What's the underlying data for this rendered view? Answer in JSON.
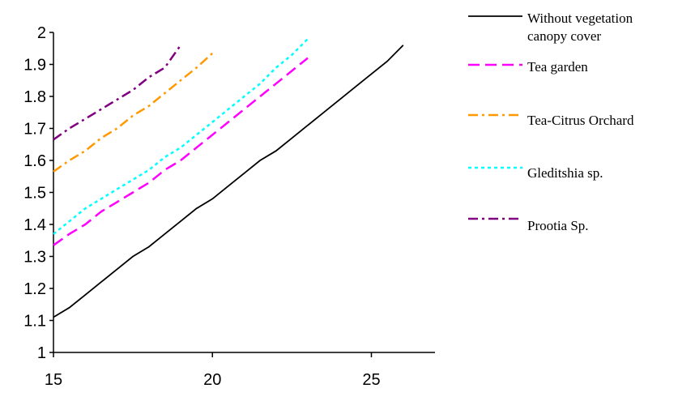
{
  "chart_data": {
    "type": "line",
    "title": "",
    "xlabel": "",
    "ylabel": "",
    "xlim": [
      15,
      27
    ],
    "ylim": [
      1,
      2
    ],
    "xticks": [
      "15",
      "20",
      "25"
    ],
    "yticks": [
      "1",
      "1.1",
      "1.2",
      "1.3",
      "1.4",
      "1.5",
      "1.6",
      "1.7",
      "1.8",
      "1.9",
      "2"
    ],
    "grid": false,
    "legend_position": "right",
    "series": [
      {
        "name": "Without vegetation canopy cover",
        "legend_lines": [
          "Without vegetation",
          "canopy cover"
        ],
        "color": "#000000",
        "dash": "solid",
        "x": [
          15,
          15.5,
          16,
          16.5,
          17,
          17.5,
          18,
          18.5,
          19,
          19.5,
          20,
          20.5,
          21,
          21.5,
          22,
          22.5,
          23,
          23.5,
          24,
          24.5,
          25,
          25.5,
          26
        ],
        "y": [
          1.11,
          1.14,
          1.18,
          1.22,
          1.26,
          1.3,
          1.33,
          1.37,
          1.41,
          1.45,
          1.48,
          1.52,
          1.56,
          1.6,
          1.63,
          1.67,
          1.71,
          1.75,
          1.79,
          1.83,
          1.87,
          1.91,
          1.96
        ]
      },
      {
        "name": "Tea garden",
        "legend_lines": [
          "Tea garden"
        ],
        "color": "#ff00ff",
        "dash": "dash",
        "x": [
          15,
          15.5,
          16,
          16.5,
          17,
          17.5,
          18,
          18.5,
          19,
          19.5,
          20,
          20.5,
          21,
          21.5,
          22,
          22.5,
          23
        ],
        "y": [
          1.335,
          1.37,
          1.4,
          1.44,
          1.47,
          1.5,
          1.53,
          1.57,
          1.6,
          1.64,
          1.68,
          1.72,
          1.76,
          1.8,
          1.84,
          1.88,
          1.92
        ]
      },
      {
        "name": "Tea-Citrus Orchard",
        "legend_lines": [
          "Tea-Citrus Orchard"
        ],
        "color": "#ff9900",
        "dash": "dashdot",
        "x": [
          15,
          15.5,
          16,
          16.5,
          17,
          17.5,
          18,
          18.5,
          19,
          19.5,
          20
        ],
        "y": [
          1.565,
          1.6,
          1.63,
          1.67,
          1.7,
          1.74,
          1.77,
          1.81,
          1.85,
          1.89,
          1.935
        ]
      },
      {
        "name": "Gleditshia sp.",
        "legend_lines": [
          "Gleditshia sp."
        ],
        "color": "#00ffff",
        "dash": "dot",
        "x": [
          15,
          15.5,
          16,
          16.5,
          17,
          17.5,
          18,
          18.5,
          19,
          19.5,
          20,
          20.5,
          21,
          21.5,
          22,
          22.5,
          23
        ],
        "y": [
          1.37,
          1.41,
          1.45,
          1.48,
          1.51,
          1.54,
          1.57,
          1.61,
          1.64,
          1.68,
          1.72,
          1.76,
          1.8,
          1.84,
          1.89,
          1.93,
          1.98
        ]
      },
      {
        "name": "Prootia Sp.",
        "legend_lines": [
          "Prootia Sp."
        ],
        "color": "#800080",
        "dash": "dashdot",
        "x": [
          15,
          15.5,
          16,
          16.5,
          17,
          17.5,
          18,
          18.5,
          19
        ],
        "y": [
          1.665,
          1.7,
          1.73,
          1.76,
          1.79,
          1.82,
          1.86,
          1.89,
          1.96
        ]
      }
    ]
  }
}
